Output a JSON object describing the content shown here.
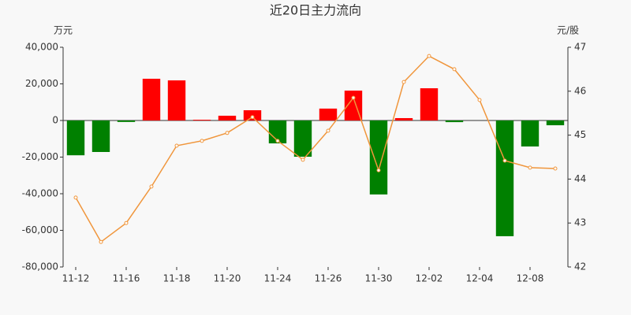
{
  "chart_data": {
    "type": "bar-line",
    "title": "近20日主力流向",
    "y_label": "万元",
    "y2_label": "元/股",
    "categories": [
      "11-12",
      null,
      "11-16",
      null,
      "11-18",
      null,
      "11-20",
      null,
      "11-24",
      null,
      "11-26",
      null,
      "11-30",
      null,
      "12-02",
      null,
      "12-04",
      null,
      "12-08",
      null
    ],
    "series": [
      {
        "type": "bar",
        "positive_color": "#ff0000",
        "negative_color": "#008000",
        "values": [
          -19000,
          -17200,
          -800,
          22800,
          21900,
          400,
          2600,
          5600,
          -12500,
          -19800,
          6500,
          16300,
          -40400,
          1300,
          17600,
          -900,
          0,
          -63200,
          -14200,
          -2600
        ]
      },
      {
        "type": "line",
        "axis": "y2",
        "color": "#f0963c",
        "values": [
          43.58,
          42.57,
          43.0,
          43.83,
          44.76,
          44.87,
          45.05,
          45.41,
          44.87,
          44.44,
          45.1,
          45.85,
          44.2,
          46.21,
          46.8,
          46.5,
          45.8,
          44.42,
          44.26,
          44.24
        ]
      }
    ],
    "ylim": [
      -80000,
      40000
    ],
    "yticks": [
      {
        "value": -80000,
        "label": "-80,000"
      },
      {
        "value": -60000,
        "label": "-60,000"
      },
      {
        "value": -40000,
        "label": "-40,000"
      },
      {
        "value": -20000,
        "label": "-20,000"
      },
      0,
      {
        "value": 20000,
        "label": "20,000"
      },
      {
        "value": 40000,
        "label": "40,000"
      }
    ],
    "y2lim": [
      42,
      47
    ],
    "y2ticks": [
      42,
      43,
      44,
      45,
      46,
      47
    ]
  }
}
